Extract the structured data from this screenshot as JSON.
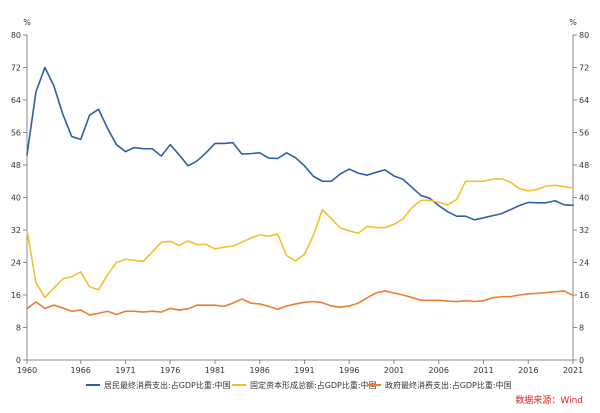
{
  "chart_data": {
    "type": "line",
    "unit_left": "%",
    "unit_right": "%",
    "ylim": [
      0,
      80
    ],
    "y_ticks": [
      0,
      8,
      16,
      24,
      32,
      40,
      48,
      56,
      64,
      72,
      80
    ],
    "x_ticks": [
      "1960",
      "1966",
      "1971",
      "1976",
      "1981",
      "1986",
      "1991",
      "1996",
      "2001",
      "2006",
      "2011",
      "2016",
      "2021"
    ],
    "xlim": [
      1960,
      2021
    ],
    "grid": false,
    "legend_position": "bottom",
    "source": "数据来源：Wind",
    "x": [
      1960,
      1961,
      1962,
      1963,
      1964,
      1965,
      1966,
      1967,
      1968,
      1969,
      1970,
      1971,
      1972,
      1973,
      1974,
      1975,
      1976,
      1977,
      1978,
      1979,
      1980,
      1981,
      1982,
      1983,
      1984,
      1985,
      1986,
      1987,
      1988,
      1989,
      1990,
      1991,
      1992,
      1993,
      1994,
      1995,
      1996,
      1997,
      1998,
      1999,
      2000,
      2001,
      2002,
      2003,
      2004,
      2005,
      2006,
      2007,
      2008,
      2009,
      2010,
      2011,
      2012,
      2013,
      2014,
      2015,
      2016,
      2017,
      2018,
      2019,
      2020,
      2021
    ],
    "series": [
      {
        "name": "居民最终消费支出:占GDP比重:中国",
        "color": "#2e5fa6",
        "values": [
          50.5,
          66.0,
          72.0,
          67.5,
          60.5,
          55.0,
          54.3,
          60.3,
          61.7,
          57.0,
          53.0,
          51.3,
          52.3,
          52.0,
          52.0,
          50.2,
          53.0,
          50.5,
          47.8,
          49.0,
          51.0,
          53.3,
          53.3,
          53.5,
          50.7,
          50.8,
          51.0,
          49.7,
          49.6,
          51.0,
          49.8,
          47.8,
          45.2,
          44.0,
          44.0,
          45.8,
          47.0,
          46.0,
          45.5,
          46.2,
          46.8,
          45.3,
          44.5,
          42.5,
          40.5,
          39.8,
          38.0,
          36.5,
          35.4,
          35.4,
          34.5,
          35.0,
          35.5,
          36.0,
          37.0,
          38.0,
          38.8,
          38.7,
          38.7,
          39.2,
          38.2,
          38.1
        ]
      },
      {
        "name": "固定资本形成总额:占GDP比重:中国",
        "color": "#f2c12e",
        "values": [
          32.0,
          19.0,
          15.4,
          17.7,
          20.0,
          20.5,
          21.7,
          18.0,
          17.3,
          21.0,
          24.0,
          24.8,
          24.5,
          24.3,
          26.6,
          29.0,
          29.2,
          28.2,
          29.3,
          28.4,
          28.5,
          27.3,
          27.8,
          28.0,
          29.0,
          30.0,
          30.8,
          30.5,
          31.0,
          25.7,
          24.4,
          26.0,
          30.7,
          37.0,
          34.8,
          32.5,
          31.8,
          31.2,
          32.9,
          32.6,
          32.6,
          33.4,
          34.7,
          37.5,
          39.3,
          39.3,
          38.8,
          38.2,
          39.5,
          44.0,
          44.0,
          44.0,
          44.5,
          44.6,
          43.8,
          42.2,
          41.6,
          42.0,
          42.8,
          43.0,
          42.7,
          42.3
        ]
      },
      {
        "name": "政府最终消费支出:占GDP比重:中国",
        "color": "#ee7d31",
        "values": [
          12.6,
          14.3,
          12.7,
          13.5,
          12.8,
          12.0,
          12.3,
          11.1,
          11.5,
          12.0,
          11.2,
          12.0,
          12.0,
          11.8,
          12.0,
          11.8,
          12.7,
          12.3,
          12.6,
          13.5,
          13.5,
          13.5,
          13.2,
          14.0,
          15.0,
          14.0,
          13.8,
          13.2,
          12.5,
          13.3,
          13.8,
          14.2,
          14.4,
          14.1,
          13.3,
          13.0,
          13.3,
          14.0,
          15.3,
          16.5,
          17.0,
          16.5,
          16.0,
          15.4,
          14.7,
          14.7,
          14.7,
          14.5,
          14.4,
          14.6,
          14.4,
          14.6,
          15.3,
          15.6,
          15.6,
          16.0,
          16.3,
          16.4,
          16.6,
          16.8,
          17.0,
          15.9
        ]
      }
    ]
  }
}
